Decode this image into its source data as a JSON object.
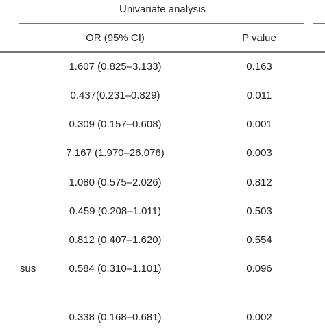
{
  "table": {
    "header": {
      "group": "Univariate analysis",
      "columns": [
        "OR (95% CI)",
        "P value"
      ]
    },
    "rows": [
      {
        "or": "1.607 (0.825–3.133)",
        "p": "0.163"
      },
      {
        "or": "0.437(0.231–0.829)",
        "p": "0.011"
      },
      {
        "or": "0.309 (0.157–0.608)",
        "p": "0.001"
      },
      {
        "or": "7.167 (1.970–26.076)",
        "p": "0.003"
      },
      {
        "or": "1.080 (0.575–2.026)",
        "p": "0.812"
      },
      {
        "or": "0.459 (0.208–1.011)",
        "p": "0.503"
      },
      {
        "or": "0.812 (0.407–1.620)",
        "p": "0.554"
      },
      {
        "label": "sus",
        "or": "0.584 (0.310–1.101)",
        "p": "0.096"
      },
      {
        "or": "0.338 (0.168–0.681)",
        "p": "0.002"
      }
    ]
  }
}
